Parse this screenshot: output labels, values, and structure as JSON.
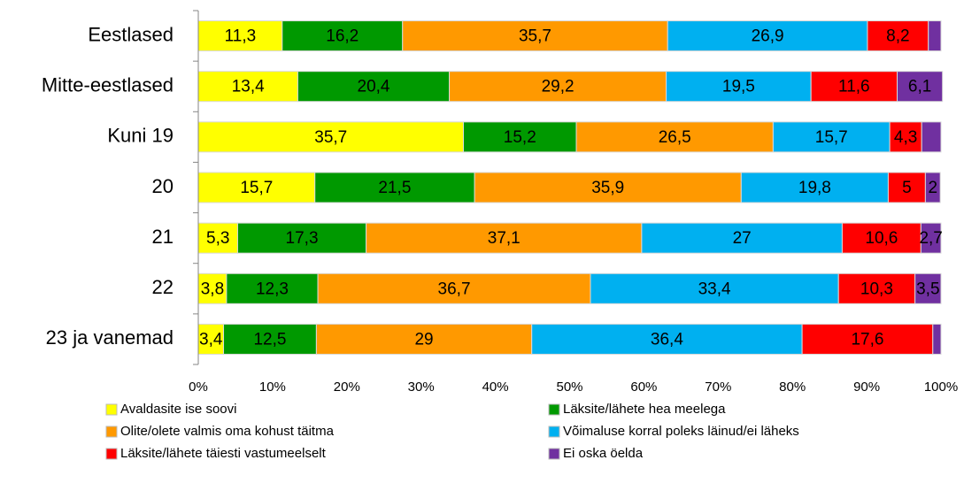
{
  "chart_data": {
    "type": "stacked-barh",
    "categories": [
      "Eestlased",
      "Mitte-eestlased",
      "Kuni 19",
      "20",
      "21",
      "22",
      "23 ja vanemad"
    ],
    "series": [
      {
        "name": "Avaldasite ise soovi",
        "color": "#ffff00",
        "values": [
          11.3,
          13.4,
          35.7,
          15.7,
          5.3,
          3.8,
          3.4
        ],
        "value_labels": [
          "11,3",
          "13,4",
          "35,7",
          "15,7",
          "5,3",
          "3,8",
          "3,4"
        ]
      },
      {
        "name": "Läksite/lähete hea meelega",
        "color": "#009900",
        "values": [
          16.2,
          20.4,
          15.2,
          21.5,
          17.3,
          12.3,
          12.5
        ],
        "value_labels": [
          "16,2",
          "20,4",
          "15,2",
          "21,5",
          "17,3",
          "12,3",
          "12,5"
        ]
      },
      {
        "name": "Olite/olete valmis oma kohust täitma",
        "color": "#ff9900",
        "values": [
          35.7,
          29.2,
          26.5,
          35.9,
          37.1,
          36.7,
          29
        ],
        "value_labels": [
          "35,7",
          "29,2",
          "26,5",
          "35,9",
          "37,1",
          "36,7",
          "29"
        ]
      },
      {
        "name": "Võimaluse korral poleks läinud/ei läheks",
        "color": "#00b0f0",
        "values": [
          26.9,
          19.5,
          15.7,
          19.8,
          27,
          33.4,
          36.4
        ],
        "value_labels": [
          "26,9",
          "19,5",
          "15,7",
          "19,8",
          "27",
          "33,4",
          "36,4"
        ]
      },
      {
        "name": "Läksite/lähete täiesti vastumeelselt",
        "color": "#ff0000",
        "values": [
          8.2,
          11.6,
          4.3,
          5,
          10.6,
          10.3,
          17.6
        ],
        "value_labels": [
          "8,2",
          "11,6",
          "4,3",
          "5",
          "10,6",
          "10,3",
          "17,6"
        ]
      },
      {
        "name": "Ei oska öelda",
        "color": "#7030a0",
        "values": [
          1.7,
          6.1,
          2.6,
          2,
          2.7,
          3.5,
          1.1
        ],
        "value_labels": [
          null,
          "6,1",
          null,
          "2",
          "2,7",
          "3,5",
          null
        ]
      }
    ],
    "xlim": [
      0,
      100
    ],
    "xticks": [
      {
        "value": 0,
        "label": "0%"
      },
      {
        "value": 10,
        "label": "10%"
      },
      {
        "value": 20,
        "label": "20%"
      },
      {
        "value": 30,
        "label": "30%"
      },
      {
        "value": 40,
        "label": "40%"
      },
      {
        "value": 50,
        "label": "50%"
      },
      {
        "value": 60,
        "label": "60%"
      },
      {
        "value": 70,
        "label": "70%"
      },
      {
        "value": 80,
        "label": "80%"
      },
      {
        "value": 90,
        "label": "90%"
      },
      {
        "value": 100,
        "label": "100%"
      }
    ],
    "legend": "bottom"
  }
}
